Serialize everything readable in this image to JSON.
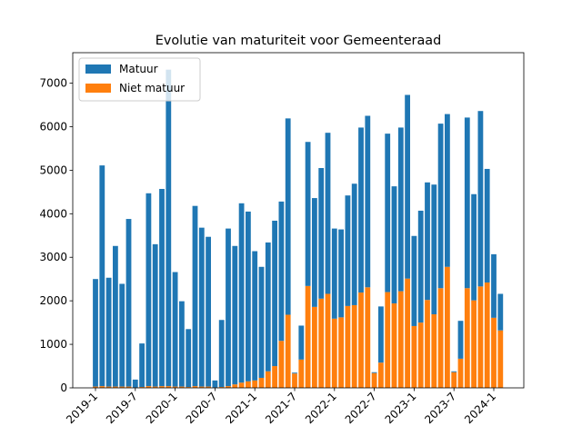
{
  "chart_data": {
    "type": "bar",
    "stacked": true,
    "title": "Evolutie van maturiteit voor Gemeenteraad",
    "categories": [
      "2019-1",
      null,
      null,
      null,
      null,
      null,
      "2019-7",
      null,
      null,
      null,
      null,
      null,
      "2020-1",
      null,
      null,
      null,
      null,
      null,
      "2020-7",
      null,
      null,
      null,
      null,
      null,
      "2021-1",
      null,
      null,
      null,
      null,
      null,
      "2021-7",
      null,
      null,
      null,
      null,
      null,
      "2022-1",
      null,
      null,
      null,
      null,
      null,
      "2022-7",
      null,
      null,
      null,
      null,
      null,
      "2023-1",
      null,
      null,
      null,
      null,
      null,
      "2023-7",
      null,
      null,
      null,
      null,
      null,
      "2024-1",
      null
    ],
    "series": [
      {
        "name": "Matuur",
        "color": "#1f77b4",
        "values": [
          2470,
          5070,
          2500,
          3230,
          2360,
          3850,
          180,
          1000,
          4430,
          3270,
          4530,
          7270,
          2630,
          1960,
          1330,
          4140,
          3650,
          3440,
          160,
          1540,
          3620,
          3180,
          4120,
          3900,
          2970,
          2550,
          2960,
          3340,
          3200,
          4510,
          20,
          780,
          3310,
          2500,
          3000,
          3700,
          2070,
          2020,
          2540,
          2790,
          3790,
          3940,
          20,
          1290,
          3640,
          2690,
          3760,
          4220,
          2070,
          2570,
          2700,
          2980,
          3780,
          3510,
          20,
          870,
          3920,
          2440,
          4030,
          2610,
          1460,
          840
        ]
      },
      {
        "name": "Niet matuur",
        "color": "#ff7f0e",
        "values": [
          30,
          40,
          30,
          30,
          30,
          30,
          10,
          20,
          40,
          30,
          40,
          40,
          30,
          30,
          20,
          40,
          30,
          30,
          10,
          20,
          40,
          80,
          120,
          150,
          170,
          230,
          380,
          500,
          1080,
          1680,
          330,
          650,
          2340,
          1860,
          2050,
          2160,
          1590,
          1620,
          1880,
          1900,
          2190,
          2310,
          340,
          580,
          2200,
          1940,
          2220,
          2510,
          1420,
          1500,
          2020,
          1690,
          2290,
          2780,
          360,
          670,
          2290,
          2010,
          2330,
          2420,
          1610,
          1320
        ]
      }
    ],
    "ylim": [
      0,
      7700
    ],
    "yticks": [
      0,
      1000,
      2000,
      3000,
      4000,
      5000,
      6000,
      7000
    ],
    "legend": "upper left"
  }
}
